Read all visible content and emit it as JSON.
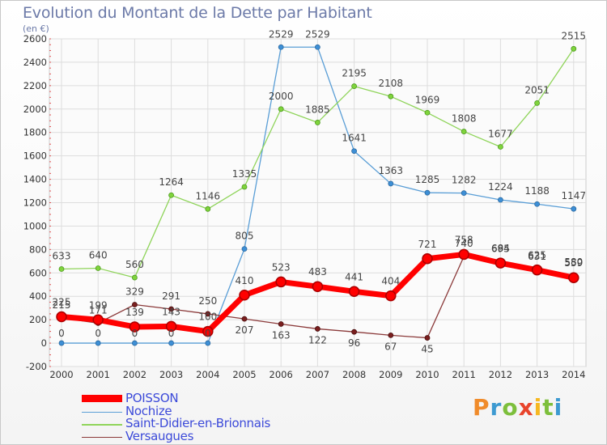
{
  "title": "Evolution du Montant de la Dette par Habitant",
  "unit_label": "(en €)",
  "brand": {
    "letters": [
      "P",
      "r",
      "o",
      "x",
      "i",
      "t",
      "i"
    ],
    "colors": [
      "#f08b2a",
      "#3d9ad1",
      "#7dbf3c",
      "#e8442c",
      "#f6b821",
      "#7dbf3c",
      "#3d9ad1"
    ]
  },
  "chart_data": {
    "type": "line",
    "x": [
      "2000",
      "2001",
      "2002",
      "2003",
      "2004",
      "2005",
      "2006",
      "2007",
      "2008",
      "2009",
      "2010",
      "2011",
      "2012",
      "2013",
      "2014"
    ],
    "ylim": [
      -200,
      2600
    ],
    "yticks": [
      "-200",
      "0",
      "200",
      "400",
      "600",
      "800",
      "1000",
      "1200",
      "1400",
      "1600",
      "1800",
      "2000",
      "2200",
      "2400",
      "2600"
    ],
    "grid": true,
    "legend": "bottom-left",
    "series": [
      {
        "name": "POISSON",
        "color": "#ff0000",
        "values": [
          225,
          199,
          139,
          143,
          100,
          410,
          523,
          483,
          441,
          404,
          721,
          758,
          684,
          625,
          559
        ]
      },
      {
        "name": "Nochize",
        "color": "#5a9ed6",
        "values": [
          0,
          0,
          0,
          0,
          0,
          805,
          2529,
          2529,
          1641,
          1363,
          1285,
          1282,
          1224,
          1188,
          1147
        ]
      },
      {
        "name": "Saint-Didier-en-Brionnais",
        "color": "#8fd45a",
        "values": [
          633,
          640,
          560,
          1264,
          1146,
          1335,
          2000,
          1885,
          2195,
          2108,
          1969,
          1808,
          1677,
          2051,
          2515
        ]
      },
      {
        "name": "Versaugues",
        "color": "#8b3a3a",
        "values": [
          215,
          171,
          329,
          291,
          250,
          207,
          163,
          122,
          96,
          67,
          45,
          740,
          695,
          631,
          580
        ]
      }
    ],
    "labels": [
      {
        "series": 0,
        "text": [
          "225",
          "199",
          "139",
          "143",
          "100",
          "410",
          "523",
          "483",
          "441",
          "404",
          "721",
          "758",
          "684",
          "625",
          "559"
        ]
      },
      {
        "series": 1,
        "text": [
          "0",
          "0",
          "0",
          "0",
          "0",
          "805",
          "2529",
          "2529",
          "1641",
          "1363",
          "1285",
          "1282",
          "1224",
          "1188",
          "1147"
        ]
      },
      {
        "series": 2,
        "text": [
          "633",
          "640",
          "560",
          "1264",
          "1146",
          "1335",
          "2000",
          "1885",
          "2195",
          "2108",
          "1969",
          "1808",
          "1677",
          "2051",
          "2515"
        ]
      },
      {
        "series": 3,
        "text": [
          "215",
          "171",
          "329",
          "291",
          "250",
          "207",
          "163",
          "122",
          "96",
          "67",
          "45",
          "740",
          "695",
          "631",
          "580"
        ]
      }
    ]
  }
}
